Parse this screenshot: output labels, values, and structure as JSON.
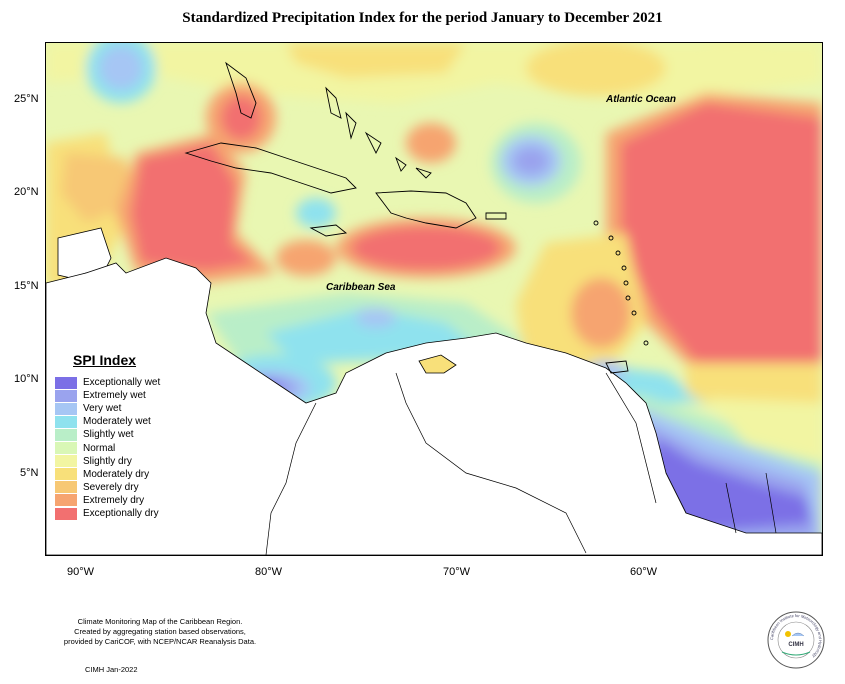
{
  "title": "Standardized Precipitation Index for the period January to December 2021",
  "map_labels": {
    "atlantic": "Atlantic Ocean",
    "caribbean": "Caribbean Sea"
  },
  "lat_ticks": [
    "25°N",
    "20°N",
    "15°N",
    "10°N",
    "5°N"
  ],
  "lon_ticks": [
    "90°W",
    "80°W",
    "70°W",
    "60°W"
  ],
  "legend": {
    "title": "SPI Index",
    "items": [
      {
        "label": "Exceptionally wet",
        "color": "#7b6fe6"
      },
      {
        "label": "Extremely wet",
        "color": "#9aa3ee"
      },
      {
        "label": "Very wet",
        "color": "#a6c6f4"
      },
      {
        "label": "Moderately wet",
        "color": "#8fe2ee"
      },
      {
        "label": "Slightly wet",
        "color": "#b9eec8"
      },
      {
        "label": "Normal",
        "color": "#d9f7b6"
      },
      {
        "label": "Slightly dry",
        "color": "#f2f5a2"
      },
      {
        "label": "Moderately dry",
        "color": "#f8e07a"
      },
      {
        "label": "Severely dry",
        "color": "#f7c874"
      },
      {
        "label": "Extremely dry",
        "color": "#f6a470"
      },
      {
        "label": "Exceptionally dry",
        "color": "#f27070"
      }
    ]
  },
  "footer": {
    "line1": "Climate Monitoring Map of the Caribbean Region.",
    "line2": "Created by aggregating station based observations,",
    "line3": "provided by CariCOF, with NCEP/NCAR Reanalysis Data.",
    "date": "CIMH Jan-2022"
  },
  "logo": {
    "text": "CIMH",
    "ring_text": "Caribbean Institute for Meteorology and Hydrology"
  }
}
